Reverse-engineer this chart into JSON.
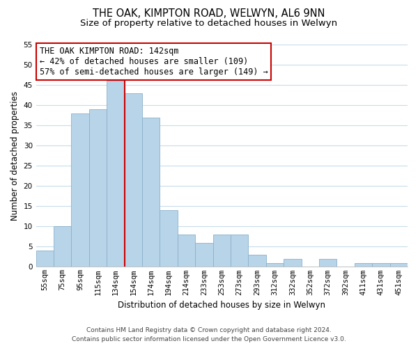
{
  "title": "THE OAK, KIMPTON ROAD, WELWYN, AL6 9NN",
  "subtitle": "Size of property relative to detached houses in Welwyn",
  "xlabel": "Distribution of detached houses by size in Welwyn",
  "ylabel": "Number of detached properties",
  "categories": [
    "55sqm",
    "75sqm",
    "95sqm",
    "115sqm",
    "134sqm",
    "154sqm",
    "174sqm",
    "194sqm",
    "214sqm",
    "233sqm",
    "253sqm",
    "273sqm",
    "293sqm",
    "312sqm",
    "332sqm",
    "352sqm",
    "372sqm",
    "392sqm",
    "411sqm",
    "431sqm",
    "451sqm"
  ],
  "values": [
    4,
    10,
    38,
    39,
    46,
    43,
    37,
    14,
    8,
    6,
    8,
    8,
    3,
    1,
    2,
    0,
    2,
    0,
    1,
    1,
    1
  ],
  "bar_color": "#b8d4e8",
  "bar_edge_color": "#8ab0cc",
  "ref_line_x": 4.5,
  "ref_line_color": "#cc0000",
  "annotation_title": "THE OAK KIMPTON ROAD: 142sqm",
  "annotation_line1": "← 42% of detached houses are smaller (109)",
  "annotation_line2": "57% of semi-detached houses are larger (149) →",
  "annotation_box_color": "#ffffff",
  "annotation_box_edge": "#cc0000",
  "ylim": [
    0,
    55
  ],
  "yticks": [
    0,
    5,
    10,
    15,
    20,
    25,
    30,
    35,
    40,
    45,
    50,
    55
  ],
  "footer1": "Contains HM Land Registry data © Crown copyright and database right 2024.",
  "footer2": "Contains public sector information licensed under the Open Government Licence v3.0.",
  "bg_color": "#ffffff",
  "grid_color": "#c8dcea",
  "title_fontsize": 10.5,
  "subtitle_fontsize": 9.5,
  "axis_label_fontsize": 8.5,
  "tick_fontsize": 7.5,
  "annotation_fontsize": 8.5,
  "footer_fontsize": 6.5
}
